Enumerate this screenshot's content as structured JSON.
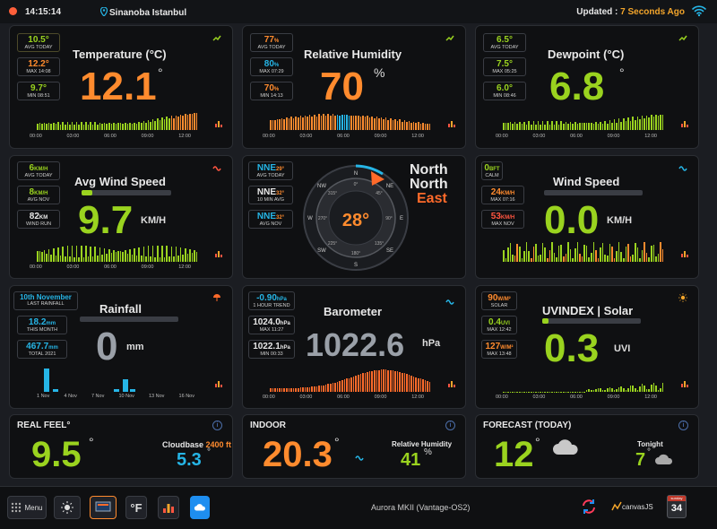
{
  "topbar": {
    "time": "14:15:14",
    "location": "Sinanoba Istanbul",
    "updated_prefix": "Updated : ",
    "updated_value": "7 Seconds Ago"
  },
  "temperature": {
    "title": "Temperature (°C)",
    "value": "12.1",
    "unit": "°",
    "avg": {
      "v": "10.5°",
      "l": "AVG TODAY"
    },
    "max": {
      "v": "12.2°",
      "l": "MAX 14:08"
    },
    "min": {
      "v": "9.7°",
      "l": "MIN 08:51"
    },
    "ticks": [
      "00:00",
      "03:00",
      "06:00",
      "09:00",
      "12:00"
    ]
  },
  "humidity": {
    "title": "Relative Humidity",
    "value": "70",
    "unit": "%",
    "avg": {
      "v": "77",
      "u": "%",
      "l": "AVG TODAY"
    },
    "max": {
      "v": "80",
      "u": "%",
      "l": "MAX 07:29"
    },
    "min": {
      "v": "70",
      "u": "%",
      "l": "MIN 14:13"
    },
    "ticks": [
      "00:00",
      "03:00",
      "06:00",
      "09:00",
      "12:00"
    ]
  },
  "dewpoint": {
    "title": "Dewpoint (°C)",
    "value": "6.8",
    "unit": "°",
    "avg": {
      "v": "6.5°",
      "l": "AVG TODAY"
    },
    "max": {
      "v": "7.5°",
      "l": "MAX 05:25"
    },
    "min": {
      "v": "6.0°",
      "l": "MIN 08:46"
    },
    "ticks": [
      "00:00",
      "03:00",
      "06:00",
      "09:00",
      "12:00"
    ]
  },
  "avgwind": {
    "title": "Avg Wind Speed",
    "value": "9.7",
    "unit": "KM/H",
    "m1": {
      "v": "6",
      "u": "KM/H",
      "l": "AVG TODAY"
    },
    "m2": {
      "v": "8",
      "u": "KM/H",
      "l": "AVG NOV"
    },
    "m3": {
      "v": "82",
      "u": "KM",
      "l": "WIND RUN"
    },
    "ticks": [
      "00:00",
      "03:00",
      "06:00",
      "09:00",
      "12:00"
    ]
  },
  "compass": {
    "m1": {
      "v": "NNE",
      "d": "29°",
      "l": "AVG TODAY"
    },
    "m2": {
      "v": "NNE",
      "d": "32°",
      "l": "10 MIN AVG"
    },
    "m3": {
      "v": "NNE",
      "d": "32°",
      "l": "AVG NOV"
    },
    "value": "28°",
    "dir1": "North",
    "dir2": "North",
    "dir3": "East",
    "points": {
      "n": "N",
      "ne": "NE",
      "e": "E",
      "se": "SE",
      "s": "S",
      "sw": "SW",
      "w": "W",
      "nw": "NW"
    },
    "degs": {
      "d0": "0°",
      "d45": "45°",
      "d90": "90°",
      "d135": "135°",
      "d180": "180°",
      "d225": "225°",
      "d270": "270°",
      "d315": "315°"
    }
  },
  "windspeed": {
    "title": "Wind Speed",
    "value": "0.0",
    "unit": "KM/H",
    "m1": {
      "v": "0",
      "u": "BFT",
      "l": "CALM"
    },
    "m2": {
      "v": "24",
      "u": "KM/H",
      "l": "MAX 07:16"
    },
    "m3": {
      "v": "53",
      "u": "KM/H",
      "l": "MAX NOV"
    }
  },
  "rainfall": {
    "title": "Rainfall",
    "value": "0",
    "unit": "mm",
    "m1": {
      "v": "10th November",
      "l": "LAST RAINFALL"
    },
    "m2": {
      "v": "18.2",
      "u": "mm",
      "l": "THIS MONTH"
    },
    "m3": {
      "v": "467.7",
      "u": "mm",
      "l": "TOTAL 2021"
    },
    "ticks": [
      "1 Nov",
      "4 Nov",
      "7 Nov",
      "10 Nov",
      "13 Nov",
      "16 Nov"
    ]
  },
  "barometer": {
    "title": "Barometer",
    "value": "1022.6",
    "unit": "hPa",
    "m1": {
      "v": "-0.90",
      "u": "hPa",
      "l": "1 HOUR TREND"
    },
    "m2": {
      "v": "1024.0",
      "u": "hPa",
      "l": "MAX 11:27"
    },
    "m3": {
      "v": "1022.1",
      "u": "hPa",
      "l": "MIN 00:33"
    },
    "ticks": [
      "00:00",
      "03:00",
      "06:00",
      "09:00",
      "12:00"
    ]
  },
  "uv": {
    "title": "UVINDEX | Solar",
    "value": "0.3",
    "unit": "UVI",
    "m1": {
      "v": "90",
      "u": "W/M²",
      "l": "SOLAR"
    },
    "m2": {
      "v": "0.4",
      "u": "UVI",
      "l": "MAX 12:42"
    },
    "m3": {
      "v": "127",
      "u": "W/M²",
      "l": "MAX 13:48"
    },
    "ticks": [
      "00:00",
      "03:00",
      "06:00",
      "09:00",
      "12:00"
    ]
  },
  "realfeel": {
    "title": "REAL FEEL°",
    "value": "9.5",
    "unit": "°",
    "cloud_label": "Cloudbase ",
    "cloud_value": "2400 ft",
    "second": "5.3",
    "second_unit": "°"
  },
  "indoor": {
    "title": "INDOOR",
    "value": "20.3",
    "unit": "°",
    "hum_label": "Relative Humidity",
    "hum_value": "41",
    "hum_unit": "%"
  },
  "forecast": {
    "title": "FORECAST (TODAY)",
    "value": "12",
    "unit": "°",
    "tonight_label": "Tonight",
    "tonight_value": "7",
    "tonight_unit": "°"
  },
  "bottom": {
    "menu": "Menu",
    "fbtn": "°F",
    "device": "Aurora MKII (Vantage-OS2)",
    "canvas": "canvasJS",
    "cal_top": "sunday",
    "cal_day": "34"
  },
  "colors": {
    "orange": "#ff8b2e",
    "green": "#9ad31f",
    "cyan": "#26b5e6",
    "gray": "#9aa0a8"
  }
}
